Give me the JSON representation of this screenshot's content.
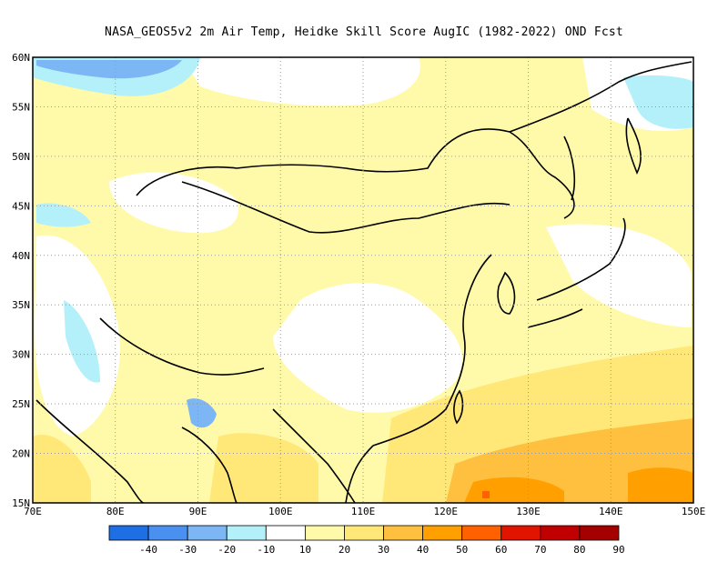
{
  "title": "NASA_GEOS5v2  2m Air Temp, Heidke Skill Score AugIC (1982-2022) OND Fcst",
  "map": {
    "lon_range": [
      70,
      150
    ],
    "lat_range": [
      15,
      60
    ],
    "lon_labels": [
      "70E",
      "80E",
      "90E",
      "100E",
      "110E",
      "120E",
      "130E",
      "140E",
      "150E"
    ],
    "lat_labels": [
      "15N",
      "20N",
      "25N",
      "30N",
      "35N",
      "40N",
      "45N",
      "50N",
      "55N",
      "60N"
    ],
    "grid": "dotted"
  },
  "colorbar": {
    "labels": [
      "-40",
      "-30",
      "-20",
      "-10",
      "10",
      "20",
      "30",
      "40",
      "50",
      "60",
      "70",
      "80",
      "90"
    ],
    "colors": [
      "#1e6ee6",
      "#4a90f0",
      "#7db6f5",
      "#b4f0fa",
      "#ffffff",
      "#fffaaa",
      "#ffe878",
      "#ffc040",
      "#ffa000",
      "#ff6000",
      "#e11400",
      "#c00000",
      "#a50000"
    ]
  }
}
